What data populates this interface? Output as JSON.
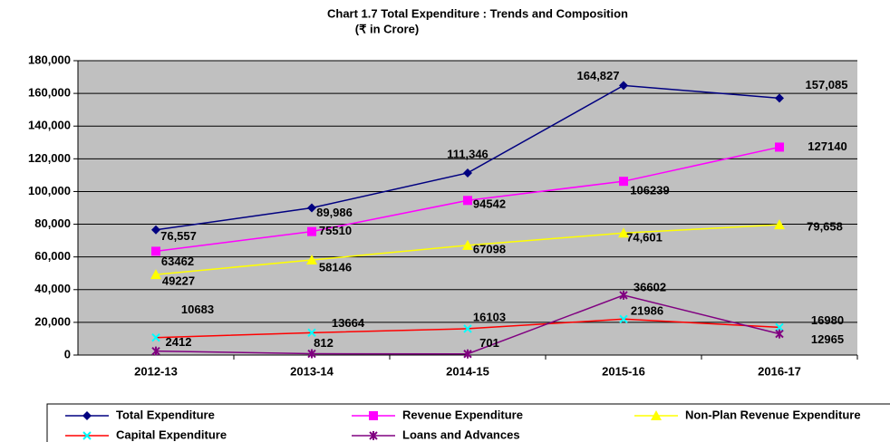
{
  "chart_data": {
    "type": "line",
    "title": "Chart 1.7 Total Expenditure : Trends and Composition",
    "subtitle": "(₹ in Crore)",
    "categories": [
      "2012-13",
      "2013-14",
      "2014-15",
      "2015-16",
      "2016-17"
    ],
    "series": [
      {
        "name": "Total Expenditure",
        "color": "#000080",
        "marker": "diamond",
        "values": [
          76557,
          89986,
          111346,
          164827,
          157085
        ],
        "value_labels": [
          "76,557",
          "89,986",
          "111,346",
          "164,827",
          "157,085"
        ]
      },
      {
        "name": "Revenue Expenditure",
        "color": "#FF00FF",
        "marker": "square",
        "values": [
          63462,
          75510,
          94542,
          106239,
          127140
        ]
      },
      {
        "name": "Non-Plan Revenue Expenditure",
        "color": "#FFFF00",
        "marker": "triangle",
        "values": [
          49227,
          58146,
          67098,
          74601,
          79658
        ],
        "value_labels": [
          "49227",
          "58146",
          "67098",
          "74,601",
          "79,658"
        ]
      },
      {
        "name": "Capital Expenditure",
        "color": "#FF0000",
        "marker": "x",
        "marker_color": "#00FFFF",
        "values": [
          10683,
          13664,
          16103,
          21986,
          16980
        ]
      },
      {
        "name": "Loans and Advances",
        "color": "#800080",
        "marker": "asterisk",
        "values": [
          2412,
          812,
          701,
          36602,
          12965
        ]
      }
    ],
    "ylim": [
      0,
      180000
    ],
    "yticks": [
      0,
      {
        "value": 20000,
        "label": "20,000"
      },
      {
        "value": 40000,
        "label": "40,000"
      },
      {
        "value": 60000,
        "label": "60,000"
      },
      {
        "value": 80000,
        "label": "80,000"
      },
      {
        "value": 100000,
        "label": "100,000"
      },
      {
        "value": 120000,
        "label": "120,000"
      },
      {
        "value": 140000,
        "label": "140,000"
      },
      {
        "value": 160000,
        "label": "160,000"
      },
      {
        "value": 180000,
        "label": "180,000"
      }
    ],
    "grid": true,
    "legend": "bottom"
  }
}
